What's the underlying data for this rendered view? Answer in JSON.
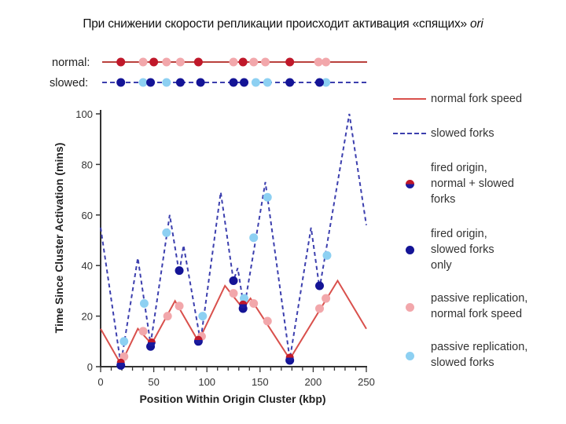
{
  "slide": {
    "title_main": "При снижении скорости репликации происходит активация «спящих» ",
    "title_italic": "ori"
  },
  "colors": {
    "normal_line": "#d9504c",
    "slowed_line": "#3c3fae",
    "fired_normal_slowed_top": "#c0182a",
    "fired_normal_slowed_bottom": "#1a1a9e",
    "fired_slowed_only": "#141496",
    "passive_normal": "#f2a7ab",
    "passive_slowed": "#8dd0f2"
  },
  "track_rows": {
    "normal_label": "normal:",
    "slowed_label": "slowed:",
    "normal_fired_kbp": [
      19,
      50,
      92,
      134,
      178
    ],
    "normal_passive_kbp": [
      40,
      62,
      75,
      125,
      144,
      155,
      205,
      212
    ],
    "slowed_fired_kbp": [
      19,
      47,
      75,
      94,
      125,
      135,
      178,
      206
    ],
    "slowed_passive_kbp": [
      40,
      62,
      146,
      157,
      212
    ]
  },
  "legend": {
    "items": [
      {
        "key": "normal",
        "label": "normal fork speed"
      },
      {
        "key": "slowed",
        "label": "slowed forks"
      },
      {
        "key": "fired_both",
        "label": "fired origin,\nnormal + slowed\nforks"
      },
      {
        "key": "fired_slowed",
        "label": "fired origin,\nslowed forks\nonly"
      },
      {
        "key": "passive_normal",
        "label": "passive replication,\nnormal fork speed"
      },
      {
        "key": "passive_slowed",
        "label": "passive replication,\nslowed forks"
      }
    ]
  },
  "chart_data": {
    "type": "line",
    "title": "",
    "xlabel": "Position Within Origin Cluster (kbp)",
    "ylabel": "Time Since Cluster Activation (mins)",
    "xlim": [
      0,
      250
    ],
    "ylim": [
      0,
      100
    ],
    "x_ticks": [
      0,
      50,
      100,
      150,
      200,
      250
    ],
    "y_ticks": [
      0,
      20,
      40,
      60,
      80,
      100
    ],
    "grid": false,
    "legend_position": "right",
    "series": [
      {
        "name": "normal fork speed",
        "style": "solid",
        "x": [
          0,
          19,
          35,
          48,
          70,
          92,
          117,
          134,
          141,
          178,
          223,
          250
        ],
        "y": [
          15,
          1,
          15,
          9,
          26,
          10,
          32,
          23,
          27,
          3,
          34,
          15
        ]
      },
      {
        "name": "slowed forks",
        "style": "dashed",
        "x": [
          0,
          19,
          35,
          47,
          65,
          74,
          78,
          94,
          113,
          125,
          129,
          135,
          155,
          178,
          198,
          206,
          234,
          250
        ],
        "y": [
          55,
          1,
          43,
          9,
          60,
          37,
          48,
          10,
          69,
          34,
          39,
          23,
          73,
          3,
          55,
          31,
          100,
          56
        ]
      }
    ],
    "points": {
      "fired_origin_normal_plus_slowed": [
        {
          "x": 19,
          "y": 1
        },
        {
          "x": 48,
          "y": 9
        },
        {
          "x": 92,
          "y": 10
        },
        {
          "x": 134,
          "y": 24
        },
        {
          "x": 178,
          "y": 3
        }
      ],
      "fired_origin_slowed_only": [
        {
          "x": 19,
          "y": 0.5
        },
        {
          "x": 47,
          "y": 8
        },
        {
          "x": 74,
          "y": 38
        },
        {
          "x": 92,
          "y": 10
        },
        {
          "x": 125,
          "y": 34
        },
        {
          "x": 134,
          "y": 23
        },
        {
          "x": 178,
          "y": 2.5
        },
        {
          "x": 206,
          "y": 32
        }
      ],
      "passive_replication_normal": [
        {
          "x": 22,
          "y": 4
        },
        {
          "x": 40,
          "y": 14
        },
        {
          "x": 63,
          "y": 20
        },
        {
          "x": 74,
          "y": 24
        },
        {
          "x": 95,
          "y": 12
        },
        {
          "x": 125,
          "y": 29
        },
        {
          "x": 144,
          "y": 25
        },
        {
          "x": 157,
          "y": 18
        },
        {
          "x": 206,
          "y": 23
        },
        {
          "x": 212,
          "y": 27
        }
      ],
      "passive_replication_slowed": [
        {
          "x": 22,
          "y": 10
        },
        {
          "x": 41,
          "y": 25
        },
        {
          "x": 62,
          "y": 53
        },
        {
          "x": 96,
          "y": 20
        },
        {
          "x": 135,
          "y": 27
        },
        {
          "x": 144,
          "y": 51
        },
        {
          "x": 157,
          "y": 67
        },
        {
          "x": 213,
          "y": 44
        }
      ]
    }
  }
}
